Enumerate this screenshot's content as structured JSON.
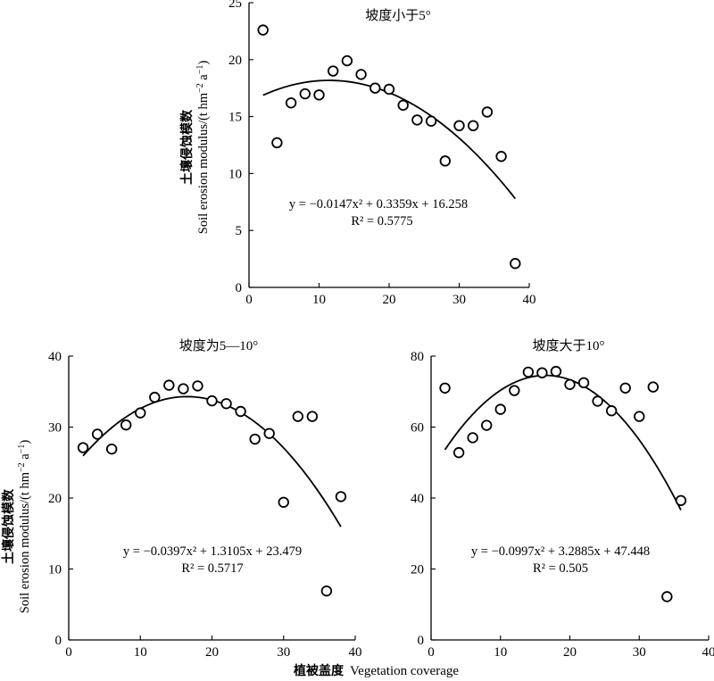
{
  "figure": {
    "xlabel_cn": "植被盖度",
    "xlabel_en": "Vegetation coverage"
  },
  "chart_data": [
    {
      "type": "scatter",
      "title": "坡度小于5°",
      "ylabel_cn": "土壤侵蚀模数",
      "ylabel_en": "Soil erosion modulus/(t hm",
      "ylabel_unit_tail": " a",
      "xlim": [
        0,
        40
      ],
      "ylim": [
        0,
        25
      ],
      "xticks": [
        "0",
        "10",
        "20",
        "30",
        "40"
      ],
      "yticks": [
        "0",
        "5",
        "10",
        "15",
        "20",
        "25"
      ],
      "points": [
        [
          2,
          22.6
        ],
        [
          4,
          12.7
        ],
        [
          6,
          16.2
        ],
        [
          8,
          17.0
        ],
        [
          10,
          16.9
        ],
        [
          12,
          19.0
        ],
        [
          14,
          19.9
        ],
        [
          16,
          18.7
        ],
        [
          18,
          17.5
        ],
        [
          20,
          17.4
        ],
        [
          22,
          16.0
        ],
        [
          24,
          14.7
        ],
        [
          26,
          14.6
        ],
        [
          28,
          11.1
        ],
        [
          30,
          14.2
        ],
        [
          32,
          14.2
        ],
        [
          34,
          15.4
        ],
        [
          36,
          11.5
        ],
        [
          38,
          2.1
        ]
      ],
      "fit": {
        "a": -0.0147,
        "b": 0.3359,
        "c": 16.258,
        "x_from": 2,
        "x_to": 38
      },
      "equation": "y = −0.0147x² + 0.3359x + 16.258",
      "r2": "R² = 0.5775"
    },
    {
      "type": "scatter",
      "title": "坡度为5—10°",
      "ylabel_cn": "土壤侵蚀模数",
      "ylabel_en": "Soil erosion modulus/(t hm",
      "ylabel_unit_tail": " a",
      "xlim": [
        0,
        40
      ],
      "ylim": [
        0,
        40
      ],
      "xticks": [
        "0",
        "10",
        "20",
        "30",
        "40"
      ],
      "yticks": [
        "0",
        "10",
        "20",
        "30",
        "40"
      ],
      "points": [
        [
          2,
          27.1
        ],
        [
          4,
          29.0
        ],
        [
          6,
          26.9
        ],
        [
          8,
          30.3
        ],
        [
          10,
          32.0
        ],
        [
          12,
          34.2
        ],
        [
          14,
          35.9
        ],
        [
          16,
          35.4
        ],
        [
          18,
          35.8
        ],
        [
          20,
          33.7
        ],
        [
          22,
          33.3
        ],
        [
          24,
          32.2
        ],
        [
          26,
          28.3
        ],
        [
          28,
          29.1
        ],
        [
          30,
          19.4
        ],
        [
          32,
          31.5
        ],
        [
          34,
          31.5
        ],
        [
          36,
          6.9
        ],
        [
          38,
          20.2
        ]
      ],
      "fit": {
        "a": -0.0397,
        "b": 1.3105,
        "c": 23.479,
        "x_from": 2,
        "x_to": 38
      },
      "equation": "y = −0.0397x² + 1.3105x + 23.479",
      "r2": "R² = 0.5717"
    },
    {
      "type": "scatter",
      "title": "坡度大于10°",
      "xlim": [
        0,
        40
      ],
      "ylim": [
        0,
        80
      ],
      "xticks": [
        "0",
        "10",
        "20",
        "30",
        "40"
      ],
      "yticks": [
        "0",
        "20",
        "40",
        "60",
        "80"
      ],
      "points": [
        [
          2,
          71.0
        ],
        [
          4,
          52.8
        ],
        [
          6,
          57.0
        ],
        [
          8,
          60.5
        ],
        [
          10,
          65.0
        ],
        [
          12,
          70.3
        ],
        [
          14,
          75.5
        ],
        [
          16,
          75.3
        ],
        [
          18,
          75.7
        ],
        [
          20,
          72.0
        ],
        [
          22,
          72.5
        ],
        [
          24,
          67.3
        ],
        [
          26,
          64.6
        ],
        [
          28,
          71.0
        ],
        [
          30,
          63.0
        ],
        [
          32,
          71.3
        ],
        [
          34,
          12.2
        ],
        [
          36,
          39.3
        ]
      ],
      "fit": {
        "a": -0.0997,
        "b": 3.2885,
        "c": 47.448,
        "x_from": 2,
        "x_to": 36
      },
      "equation": "y = −0.0997x² + 3.2885x + 47.448",
      "r2": "R² = 0.505"
    }
  ]
}
